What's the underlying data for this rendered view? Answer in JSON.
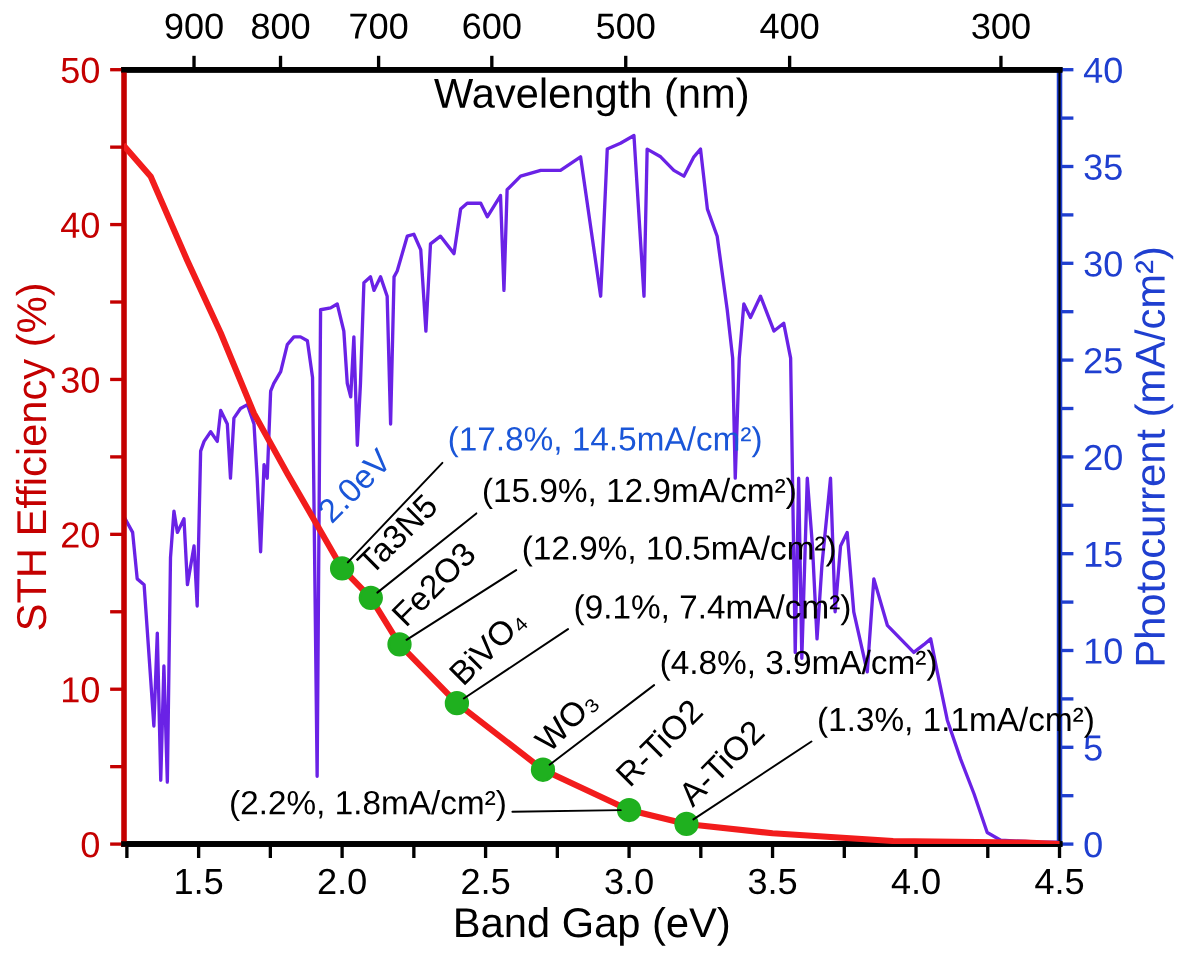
{
  "chart_data": {
    "type": "line",
    "xlabel": "Band Gap (eV)",
    "ylabel": "STH Efficiency (%)",
    "y2label": "Photocurrent (mA/cm²)",
    "x2label": "Wavelength (nm)",
    "xlim": [
      1.24,
      4.5
    ],
    "xticks": [
      {
        "value": 1.25,
        "label": null
      },
      1.5,
      {
        "value": 1.75,
        "label": null
      },
      {
        "value": 2,
        "label": "2.0"
      },
      {
        "value": 2.25,
        "label": null
      },
      2.5,
      {
        "value": 2.75,
        "label": null
      },
      {
        "value": 3,
        "label": "3.0"
      },
      {
        "value": 3.25,
        "label": null
      },
      3.5,
      {
        "value": 3.75,
        "label": null
      },
      {
        "value": 4,
        "label": "4.0"
      },
      {
        "value": 4.25,
        "label": null
      },
      4.5
    ],
    "ylim": [
      0,
      50
    ],
    "yticks": [
      0,
      {
        "value": 5,
        "label": null
      },
      10,
      {
        "value": 15,
        "label": null
      },
      20,
      {
        "value": 25,
        "label": null
      },
      30,
      {
        "value": 35,
        "label": null
      },
      40,
      {
        "value": 45,
        "label": null
      },
      50
    ],
    "y2lim": [
      0,
      40
    ],
    "y2ticks": [
      0,
      {
        "value": 2.5,
        "label": null
      },
      5,
      {
        "value": 7.5,
        "label": null
      },
      10,
      {
        "value": 12.5,
        "label": null
      },
      15,
      {
        "value": 17.5,
        "label": null
      },
      20,
      {
        "value": 22.5,
        "label": null
      },
      25,
      {
        "value": 27.5,
        "label": null
      },
      30,
      {
        "value": 32.5,
        "label": null
      },
      35,
      {
        "value": 37.5,
        "label": null
      },
      40
    ],
    "x2lim": [
      990,
      277
    ],
    "x2ticks": [
      900,
      800,
      700,
      600,
      500,
      400,
      300
    ],
    "log": "x2",
    "grid": false,
    "series": [
      {
        "type": "line",
        "axis": "y2",
        "color": "#6a22e6",
        "line_style": "solid",
        "marker": "none",
        "x": [
          1.244,
          1.27,
          1.286,
          1.31,
          1.333,
          1.344,
          1.356,
          1.368,
          1.379,
          1.391,
          1.402,
          1.414,
          1.426,
          1.449,
          1.461,
          1.484,
          1.495,
          1.507,
          1.519,
          1.542,
          1.565,
          1.577,
          1.6,
          1.611,
          1.623,
          1.646,
          1.67,
          1.693,
          1.704,
          1.716,
          1.728,
          1.739,
          1.751,
          1.762,
          1.786,
          1.809,
          1.832,
          1.855,
          1.879,
          1.897,
          1.913,
          1.925,
          1.96,
          1.983,
          2.006,
          2.018,
          2.03,
          2.041,
          2.053,
          2.064,
          2.076,
          2.099,
          2.111,
          2.134,
          2.157,
          2.169,
          2.181,
          2.192,
          2.227,
          2.25,
          2.274,
          2.292,
          2.308,
          2.343,
          2.39,
          2.413,
          2.436,
          2.483,
          2.506,
          2.552,
          2.564,
          2.575,
          2.622,
          2.692,
          2.761,
          2.831,
          2.901,
          2.924,
          2.97,
          3.017,
          3.052,
          3.063,
          3.11,
          3.156,
          3.191,
          3.226,
          3.249,
          3.273,
          3.307,
          3.342,
          3.361,
          3.37,
          3.384,
          3.4,
          3.423,
          3.458,
          3.505,
          3.539,
          3.563,
          3.579,
          3.591,
          3.602,
          3.621,
          3.639,
          3.655,
          3.672,
          3.702,
          3.718,
          3.737,
          3.76,
          3.783,
          3.83,
          3.853,
          3.9,
          3.946,
          3.992,
          4.027,
          4.051,
          4.074,
          4.109,
          4.155,
          4.202,
          4.248,
          4.295,
          4.434,
          4.492
        ],
        "values": [
          16.8,
          16.1,
          13.7,
          13.4,
          8.5,
          6.1,
          10.9,
          3.3,
          9.2,
          3.2,
          14.8,
          17.2,
          16.1,
          16.8,
          13.4,
          15.4,
          12.3,
          20.3,
          20.8,
          21.3,
          20.8,
          22.4,
          21.7,
          18.9,
          22.0,
          22.5,
          22.7,
          21.7,
          18.9,
          15.1,
          19.6,
          18.9,
          23.4,
          23.8,
          24.4,
          25.8,
          26.2,
          26.2,
          26.0,
          24.1,
          3.5,
          27.6,
          27.7,
          27.9,
          26.5,
          23.8,
          23.1,
          26.2,
          20.6,
          23.8,
          29.0,
          29.3,
          28.6,
          29.3,
          28.3,
          21.7,
          29.3,
          29.6,
          31.4,
          31.5,
          30.7,
          26.5,
          31.0,
          31.4,
          30.5,
          32.8,
          33.1,
          33.1,
          32.4,
          33.5,
          28.6,
          33.8,
          34.5,
          34.8,
          34.8,
          35.5,
          28.3,
          35.9,
          36.2,
          36.6,
          28.3,
          35.9,
          35.5,
          34.8,
          34.5,
          35.5,
          35.9,
          32.8,
          31.4,
          27.6,
          25.1,
          18.9,
          25.1,
          27.9,
          27.2,
          28.3,
          26.5,
          26.9,
          25.1,
          9.9,
          18.9,
          9.6,
          18.9,
          15.4,
          10.6,
          14.4,
          18.9,
          12.0,
          15.4,
          16.1,
          12.0,
          8.9,
          13.7,
          11.3,
          10.6,
          9.9,
          10.3,
          10.6,
          8.9,
          6.4,
          4.4,
          2.6,
          0.6,
          0.2,
          0.1,
          0.1
        ]
      },
      {
        "color": "#f21c1c",
        "line_style": "solid",
        "marker": "none",
        "x": [
          1.244,
          1.333,
          1.46,
          1.577,
          1.693,
          1.81,
          2.0,
          2.1,
          2.2,
          2.4,
          2.7,
          3.0,
          3.2,
          3.5,
          3.92,
          4.38,
          4.5
        ],
        "values": [
          45.0,
          43.1,
          37.7,
          33.0,
          27.8,
          23.9,
          17.8,
          15.9,
          12.9,
          9.1,
          4.8,
          2.2,
          1.3,
          0.7,
          0.2,
          0.1,
          0.0
        ]
      },
      {
        "type": "scatter",
        "color": "#1fb01f",
        "marker": "circle",
        "x": [
          2.0,
          2.1,
          2.2,
          2.4,
          2.7,
          3.0,
          3.2
        ],
        "values": [
          17.8,
          15.9,
          12.9,
          9.1,
          4.8,
          2.2,
          1.3
        ]
      }
    ],
    "annotations": [
      {
        "text": "2.0eV",
        "x": 2.0,
        "y": 17.8
      },
      {
        "text": "(17.8%, 14.5mA/cm²)",
        "x": 2.0,
        "y": 17.8
      },
      {
        "text": "Ta3N5",
        "x": 2.1,
        "y": 15.9
      },
      {
        "text": "(15.9%, 12.9mA/cm²)",
        "x": 2.1,
        "y": 15.9
      },
      {
        "text": "Fe2O3",
        "x": 2.2,
        "y": 12.9
      },
      {
        "text": "(12.9%, 10.5mA/cm²)",
        "x": 2.2,
        "y": 12.9
      },
      {
        "text": "BiVO₄",
        "x": 2.4,
        "y": 9.1
      },
      {
        "text": "(9.1%, 7.4mA/cm²)",
        "x": 2.4,
        "y": 9.1
      },
      {
        "text": "WO₃",
        "x": 2.7,
        "y": 4.8
      },
      {
        "text": "(4.8%, 3.9mA/cm²)",
        "x": 2.7,
        "y": 4.8
      },
      {
        "text": "R-TiO2",
        "x": 3.0,
        "y": 2.2
      },
      {
        "text": "(2.2%, 1.8mA/cm²)",
        "x": 3.0,
        "y": 2.2
      },
      {
        "text": "A-TiO2",
        "x": 3.2,
        "y": 1.3
      },
      {
        "text": "(1.3%, 1.1mA/cm²)",
        "x": 3.2,
        "y": 1.3
      }
    ]
  }
}
